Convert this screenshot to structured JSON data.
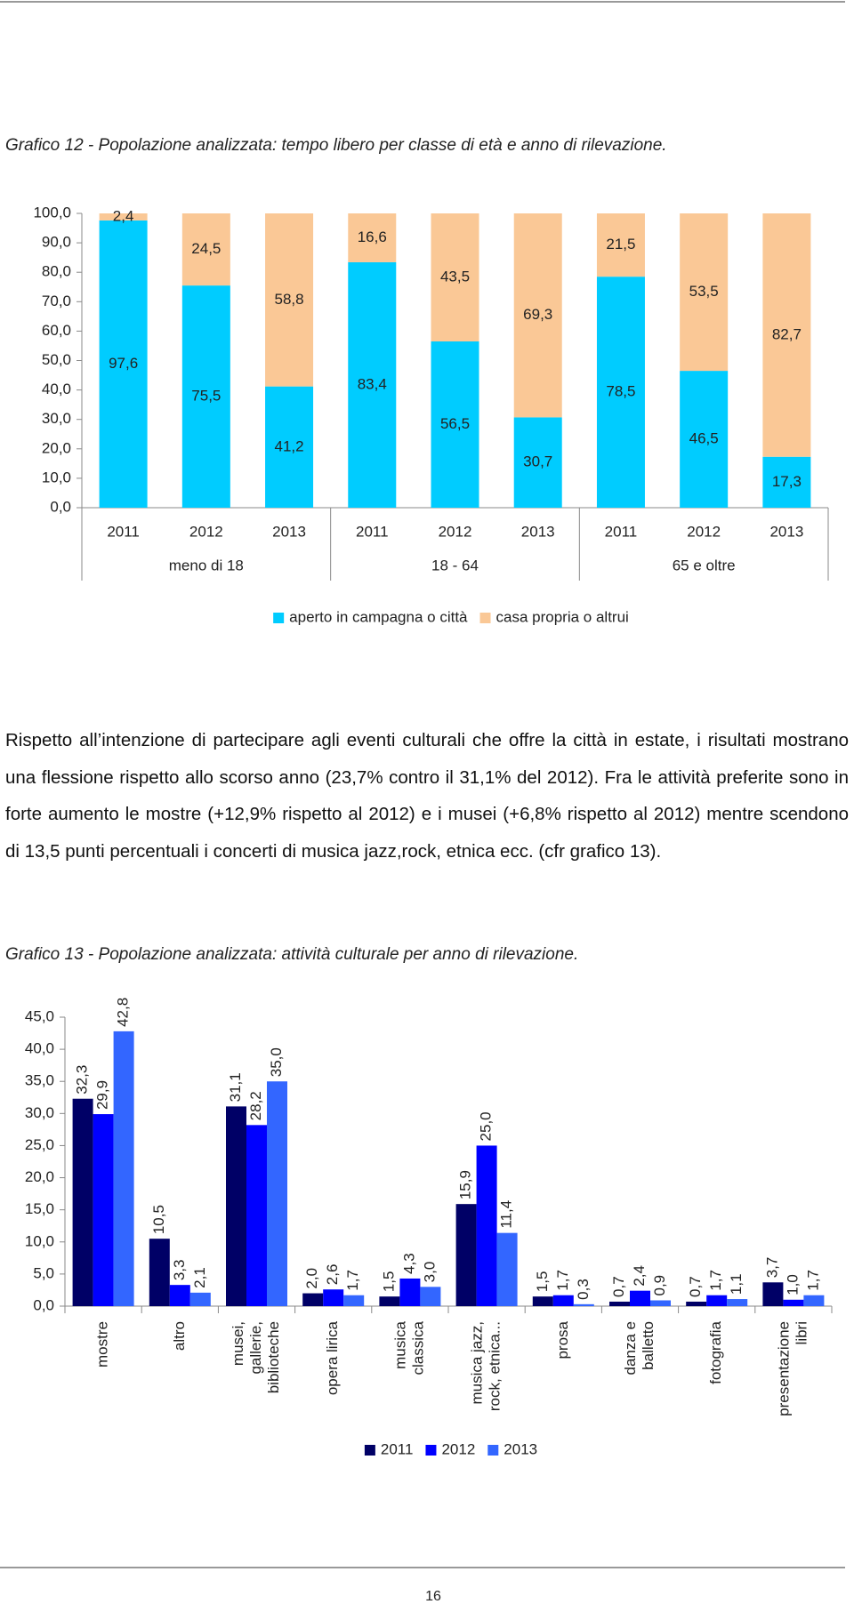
{
  "chart_data": [
    {
      "type": "stacked_bar",
      "title": "Grafico 12 - Popolazione analizzata: tempo libero per classe di età e anno di rilevazione.",
      "categories": [
        "2011",
        "2012",
        "2013",
        "2011",
        "2012",
        "2013",
        "2011",
        "2012",
        "2013"
      ],
      "groups": [
        "meno di 18",
        "18 - 64",
        "65 e oltre"
      ],
      "series": [
        {
          "name": "aperto in campagna o città",
          "color": "#00ccff",
          "values": [
            97.6,
            75.5,
            41.2,
            83.4,
            56.5,
            30.7,
            78.5,
            46.5,
            17.3
          ],
          "value_labels": [
            "97,6",
            "75,5",
            "41,2",
            "83,4",
            "56,5",
            "30,7",
            "78,5",
            "46,5",
            "17,3"
          ]
        },
        {
          "name": "casa propria o altrui",
          "color": "#fac896",
          "values": [
            2.4,
            24.5,
            58.8,
            16.6,
            43.5,
            69.3,
            21.5,
            53.5,
            82.7
          ],
          "value_labels": [
            "2,4",
            "24,5",
            "58,8",
            "16,6",
            "43,5",
            "69,3",
            "21,5",
            "53,5",
            "82,7"
          ]
        }
      ],
      "ylim": [
        0,
        100
      ],
      "yticks": [
        {
          "value": 0,
          "label": "0,0"
        },
        {
          "value": 10,
          "label": "10,0"
        },
        {
          "value": 20,
          "label": "20,0"
        },
        {
          "value": 30,
          "label": "30,0"
        },
        {
          "value": 40,
          "label": "40,0"
        },
        {
          "value": 50,
          "label": "50,0"
        },
        {
          "value": 60,
          "label": "60,0"
        },
        {
          "value": 70,
          "label": "70,0"
        },
        {
          "value": 80,
          "label": "80,0"
        },
        {
          "value": 90,
          "label": "90,0"
        },
        {
          "value": 100,
          "label": "100,0"
        }
      ],
      "legend": "bottom"
    },
    {
      "type": "bar",
      "title": "Grafico 13 - Popolazione analizzata: attività culturale per anno di rilevazione.",
      "categories": [
        [
          "mostre"
        ],
        [
          "altro"
        ],
        [
          "musei,",
          "gallerie,",
          "biblioteche"
        ],
        [
          "opera lirica"
        ],
        [
          "musica",
          "classica"
        ],
        [
          "musica jazz,",
          "rock, etnica..."
        ],
        [
          "prosa"
        ],
        [
          "danza e",
          "balletto"
        ],
        [
          "fotografia"
        ],
        [
          "presentazione",
          "libri"
        ]
      ],
      "series": [
        {
          "name": "2011",
          "color": "#000066",
          "values": [
            32.3,
            10.5,
            31.1,
            2.0,
            1.5,
            15.9,
            1.5,
            0.7,
            0.7,
            3.7
          ],
          "value_labels": [
            "32,3",
            "10,5",
            "31,1",
            "2,0",
            "1,5",
            "15,9",
            "1,5",
            "0,7",
            "0,7",
            "3,7"
          ]
        },
        {
          "name": "2012",
          "color": "#0000ff",
          "values": [
            29.9,
            3.3,
            28.2,
            2.6,
            4.3,
            25.0,
            1.7,
            2.4,
            1.7,
            1.0
          ],
          "value_labels": [
            "29,9",
            "3,3",
            "28,2",
            "2,6",
            "4,3",
            "25,0",
            "1,7",
            "2,4",
            "1,7",
            "1,0"
          ]
        },
        {
          "name": "2013",
          "color": "#3366ff",
          "values": [
            42.8,
            2.1,
            35.0,
            1.7,
            3.0,
            11.4,
            0.3,
            0.9,
            1.1,
            1.7
          ],
          "value_labels": [
            "42,8",
            "2,1",
            "35,0",
            "1,7",
            "3,0",
            "11,4",
            "0,3",
            "0,9",
            "1,1",
            "1,7"
          ]
        }
      ],
      "ylim": [
        0,
        45
      ],
      "yticks": [
        {
          "value": 0,
          "label": "0,0"
        },
        {
          "value": 5,
          "label": "5,0"
        },
        {
          "value": 10,
          "label": "10,0"
        },
        {
          "value": 15,
          "label": "15,0"
        },
        {
          "value": 20,
          "label": "20,0"
        },
        {
          "value": 25,
          "label": "25,0"
        },
        {
          "value": 30,
          "label": "30,0"
        },
        {
          "value": 35,
          "label": "35,0"
        },
        {
          "value": 40,
          "label": "40,0"
        },
        {
          "value": 45,
          "label": "45,0"
        }
      ],
      "legend": "bottom"
    }
  ],
  "document": {
    "paragraph": "Rispetto all’intenzione di partecipare agli eventi culturali che offre la città in estate, i risultati mostrano una flessione rispetto allo scorso anno (23,7% contro il 31,1% del 2012). Fra le attività preferite sono in forte aumento le mostre (+12,9% rispetto al 2012) e i musei (+6,8% rispetto al 2012) mentre scendono di 13,5 punti percentuali i concerti di musica jazz,rock, etnica ecc. (cfr grafico 13).",
    "page_number": "16"
  }
}
